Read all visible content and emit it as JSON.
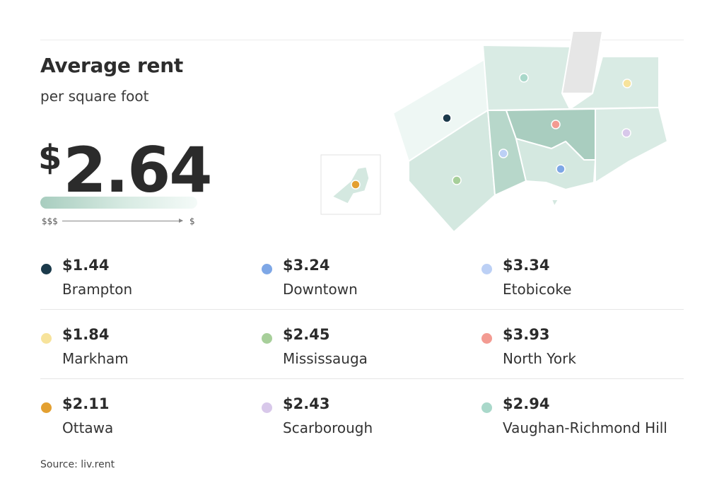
{
  "header": {
    "title": "Average rent",
    "subtitle": "per square foot",
    "currency_symbol": "$",
    "average_value": "2.64"
  },
  "scale": {
    "low_label": "$$$",
    "high_label": "$",
    "gradient_colors": [
      "#a8cdbf",
      "#f4faf8"
    ]
  },
  "legend": [
    {
      "price": "$1.44",
      "name": "Brampton",
      "color": "#1b3a4b"
    },
    {
      "price": "$3.24",
      "name": "Downtown",
      "color": "#7ea7e6"
    },
    {
      "price": "$3.34",
      "name": "Etobicoke",
      "color": "#bcd0f5"
    },
    {
      "price": "$1.84",
      "name": "Markham",
      "color": "#f7e39b"
    },
    {
      "price": "$2.45",
      "name": "Mississauga",
      "color": "#a7cf9a"
    },
    {
      "price": "$3.93",
      "name": "North York",
      "color": "#f39b92"
    },
    {
      "price": "$2.11",
      "name": "Ottawa",
      "color": "#e3a031"
    },
    {
      "price": "$2.43",
      "name": "Scarborough",
      "color": "#d8c8ea"
    },
    {
      "price": "$2.94",
      "name": "Vaughan-Richmond Hill",
      "color": "#a9d8ca"
    }
  ],
  "map": {
    "region_fills": {
      "Brampton": "#eef7f4",
      "Vaughan-Richmond Hill": "#d9ebe4",
      "Markham": "#d9ebe4",
      "Mississauga": "#d4e8e0",
      "Etobicoke": "#b7d7ca",
      "North York": "#a9cdbf",
      "Downtown": "#d4e8e0",
      "Scarborough": "#d9ebe4",
      "Ottawa": "#d4e8e0",
      "unavailable": "#e6e6e6"
    }
  },
  "source": "Source: liv.rent"
}
